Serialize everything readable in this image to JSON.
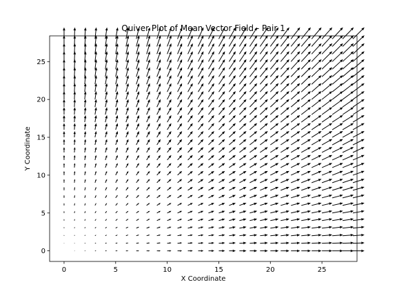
{
  "chart_data": {
    "type": "quiver",
    "title": "Quiver Plot of Mean Vector Field - Pair 1",
    "xlabel": "X Coordinate",
    "ylabel": "Y Coordinate",
    "xlim": [
      -1.4,
      28.4
    ],
    "ylim": [
      -1.4,
      28.4
    ],
    "xticks": [
      0,
      5,
      10,
      15,
      20,
      25
    ],
    "yticks": [
      0,
      5,
      10,
      15,
      20,
      25
    ],
    "grid": false,
    "arrow_color": "#000000",
    "field": {
      "x": [
        0,
        1,
        2,
        3,
        4,
        5,
        6,
        7,
        8,
        9,
        10,
        11,
        12,
        13,
        14,
        15,
        16,
        17,
        18,
        19,
        20,
        21,
        22,
        23,
        24,
        25,
        26,
        27,
        28
      ],
      "y": [
        0,
        1,
        2,
        3,
        4,
        5,
        6,
        7,
        8,
        9,
        10,
        11,
        12,
        13,
        14,
        15,
        16,
        17,
        18,
        19,
        20,
        21,
        22,
        23,
        24,
        25,
        26,
        27,
        28
      ],
      "u": "x",
      "v": "y"
    }
  }
}
